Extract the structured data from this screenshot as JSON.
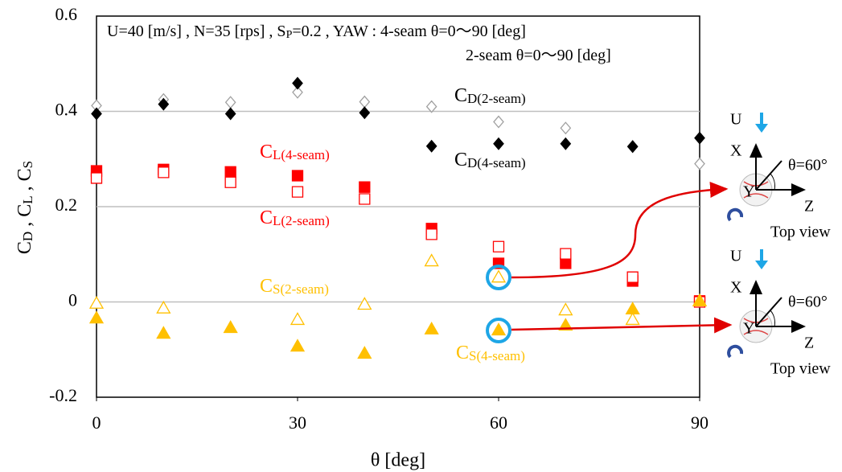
{
  "chart_data": {
    "type": "scatter",
    "x": [
      0,
      10,
      20,
      30,
      40,
      50,
      60,
      70,
      80,
      90
    ],
    "xlim": [
      0,
      90
    ],
    "xticks": [
      0,
      30,
      60,
      90
    ],
    "ylim": [
      -0.2,
      0.6
    ],
    "yticks": [
      -0.2,
      0,
      0.2,
      0.4,
      0.6
    ],
    "grid": true,
    "xlabel": "θ [deg]",
    "ylabel": [
      {
        "text": "C"
      },
      {
        "text": "D",
        "sub": true
      },
      {
        "text": " , C"
      },
      {
        "text": "L",
        "sub": true
      },
      {
        "text": " , C"
      },
      {
        "text": "S",
        "sub": true
      }
    ],
    "annotation": [
      [
        {
          "text": "U=40 [m/s] , N=35 [rps] , S"
        },
        {
          "text": "P",
          "sub": true
        },
        {
          "text": "=0.2 , YAW : 4-seam θ=0～90 [deg]"
        }
      ],
      [
        {
          "text": "2-seam θ=0～90 [deg]"
        }
      ]
    ],
    "series": [
      {
        "name": [
          {
            "text": "C"
          },
          {
            "text": "D(2-seam)",
            "sub": true
          }
        ],
        "color": "#a0a0a0",
        "marker": "diamond",
        "filled": false,
        "values": [
          0.412,
          0.425,
          0.419,
          0.44,
          0.42,
          0.41,
          0.378,
          0.365,
          0.327,
          0.29
        ]
      },
      {
        "name": [
          {
            "text": "C"
          },
          {
            "text": "D(4-seam)",
            "sub": true
          }
        ],
        "color": "#000000",
        "marker": "diamond",
        "filled": true,
        "values": [
          0.395,
          0.415,
          0.395,
          0.459,
          0.397,
          0.327,
          0.332,
          0.332,
          0.326,
          0.344
        ]
      },
      {
        "name": [
          {
            "text": "C"
          },
          {
            "text": "L(4-seam)",
            "sub": true
          }
        ],
        "color": "#ff0000",
        "marker": "square",
        "filled": true,
        "values": [
          0.275,
          0.278,
          0.273,
          0.265,
          0.241,
          0.154,
          0.081,
          0.081,
          0.044,
          0.002
        ]
      },
      {
        "name": [
          {
            "text": "C"
          },
          {
            "text": "L(2-seam)",
            "sub": true
          }
        ],
        "color": "#ff0000",
        "marker": "square",
        "filled": false,
        "values": [
          0.26,
          0.272,
          0.251,
          0.231,
          0.216,
          0.142,
          0.116,
          0.101,
          0.052,
          0.0
        ]
      },
      {
        "name": [
          {
            "text": "C"
          },
          {
            "text": "S(2-seam)",
            "sub": true
          }
        ],
        "color": "#ffc000",
        "marker": "triangle",
        "filled": false,
        "values": [
          -0.003,
          -0.013,
          null,
          -0.037,
          -0.005,
          0.086,
          0.052,
          -0.017,
          -0.037,
          0.002
        ]
      },
      {
        "name": [
          {
            "text": "C"
          },
          {
            "text": "S(4-seam)",
            "sub": true
          }
        ],
        "color": "#ffc000",
        "marker": "triangle",
        "filled": true,
        "values": [
          -0.034,
          -0.066,
          -0.054,
          -0.093,
          -0.108,
          -0.057,
          -0.059,
          -0.049,
          -0.015,
          0.002
        ]
      }
    ]
  },
  "diagram": {
    "views": [
      {
        "labels": [
          "U",
          "X",
          "θ=60°",
          "Y",
          "Z",
          "Top view"
        ]
      },
      {
        "labels": [
          "U",
          "X",
          "θ=60°",
          "Y",
          "Z",
          "Top view"
        ]
      }
    ]
  }
}
